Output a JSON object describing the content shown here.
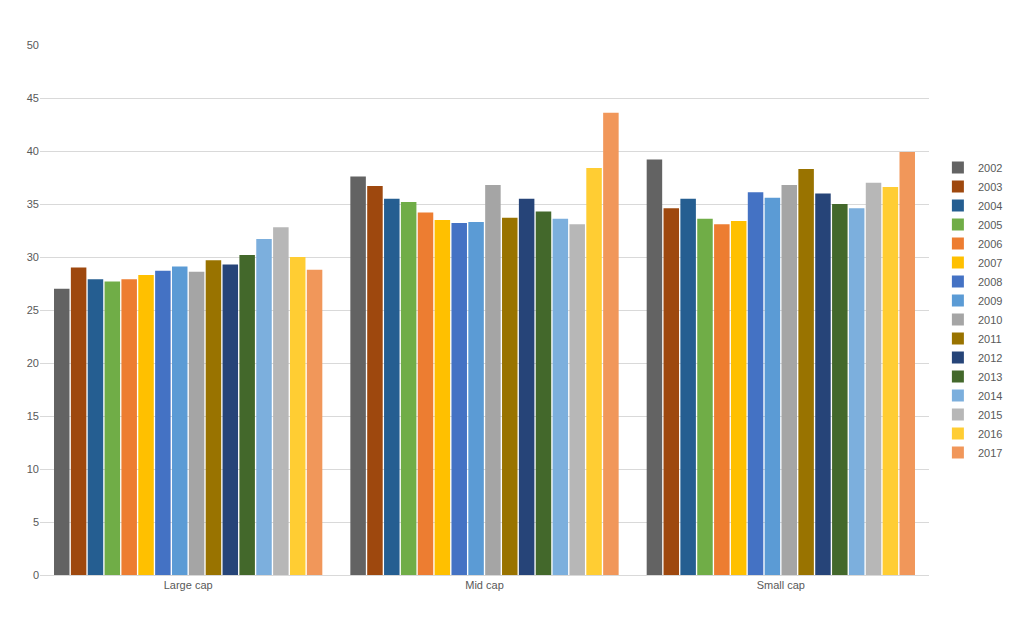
{
  "chart_data": {
    "type": "bar",
    "categories": [
      "Large cap",
      "Mid cap",
      "Small cap"
    ],
    "series": [
      {
        "name": "2002",
        "color": "#636363",
        "values": [
          27.0,
          37.6,
          39.2
        ]
      },
      {
        "name": "2003",
        "color": "#9e480e",
        "values": [
          29.0,
          36.7,
          34.6
        ]
      },
      {
        "name": "2004",
        "color": "#255e91",
        "values": [
          27.9,
          35.5,
          35.5
        ]
      },
      {
        "name": "2005",
        "color": "#70ad47",
        "values": [
          27.7,
          35.2,
          33.6
        ]
      },
      {
        "name": "2006",
        "color": "#ed7d31",
        "values": [
          27.9,
          34.2,
          33.1
        ]
      },
      {
        "name": "2007",
        "color": "#ffc000",
        "values": [
          28.3,
          33.5,
          33.4
        ]
      },
      {
        "name": "2008",
        "color": "#4472c4",
        "values": [
          28.7,
          33.2,
          36.1
        ]
      },
      {
        "name": "2009",
        "color": "#5b9bd5",
        "values": [
          29.1,
          33.3,
          35.6
        ]
      },
      {
        "name": "2010",
        "color": "#a5a5a5",
        "values": [
          28.6,
          36.8,
          36.8
        ]
      },
      {
        "name": "2011",
        "color": "#997300",
        "values": [
          29.7,
          33.7,
          38.3
        ]
      },
      {
        "name": "2012",
        "color": "#264478",
        "values": [
          29.3,
          35.5,
          36.0
        ]
      },
      {
        "name": "2013",
        "color": "#43682b",
        "values": [
          30.2,
          34.3,
          35.0
        ]
      },
      {
        "name": "2014",
        "color": "#7cafdd",
        "values": [
          31.7,
          33.6,
          34.6
        ]
      },
      {
        "name": "2015",
        "color": "#b7b7b7",
        "values": [
          32.8,
          33.1,
          37.0
        ]
      },
      {
        "name": "2016",
        "color": "#ffcd33",
        "values": [
          30.0,
          38.4,
          36.6
        ]
      },
      {
        "name": "2017",
        "color": "#f1975a",
        "values": [
          28.8,
          43.6,
          39.9
        ]
      }
    ],
    "ylim": [
      0,
      50
    ],
    "yticks": [
      0,
      5,
      10,
      15,
      20,
      25,
      30,
      35,
      40,
      45,
      50
    ],
    "grid": true,
    "legend": "right"
  }
}
